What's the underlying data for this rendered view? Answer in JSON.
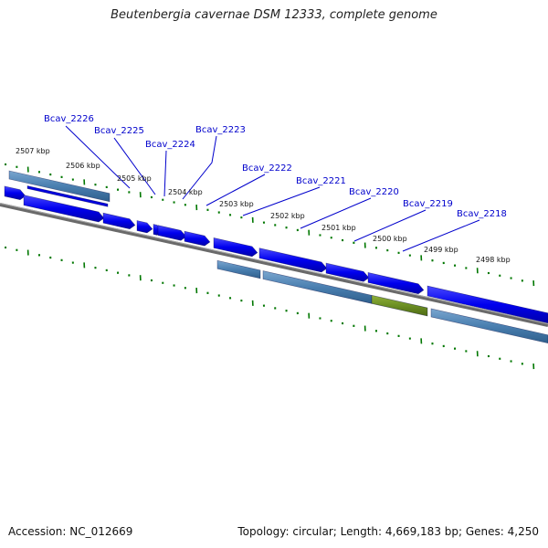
{
  "title": "Beutenbergia cavernae DSM 12333, complete genome",
  "footer": {
    "accession": "Accession: NC_012669",
    "info": "Topology: circular; Length: 4,669,183 bp; Genes: 4,250"
  },
  "scale_labels": [
    "2507 kbp",
    "2506 kbp",
    "2505 kbp",
    "2504 kbp",
    "2503 kbp",
    "2502 kbp",
    "2501 kbp",
    "2500 kbp",
    "2499 kbp",
    "2498 kbp"
  ],
  "gene_labels": [
    "Bcav_2226",
    "Bcav_2225",
    "Bcav_2224",
    "Bcav_2223",
    "Bcav_2222",
    "Bcav_2221",
    "Bcav_2220",
    "Bcav_2219",
    "Bcav_2218"
  ],
  "colors": {
    "gene": "#0000ee",
    "cds": "#4a7fb0",
    "cds_alt": "#6b8e23",
    "backbone": "#777777",
    "ticks": "#007700",
    "label": "#0000cc"
  }
}
